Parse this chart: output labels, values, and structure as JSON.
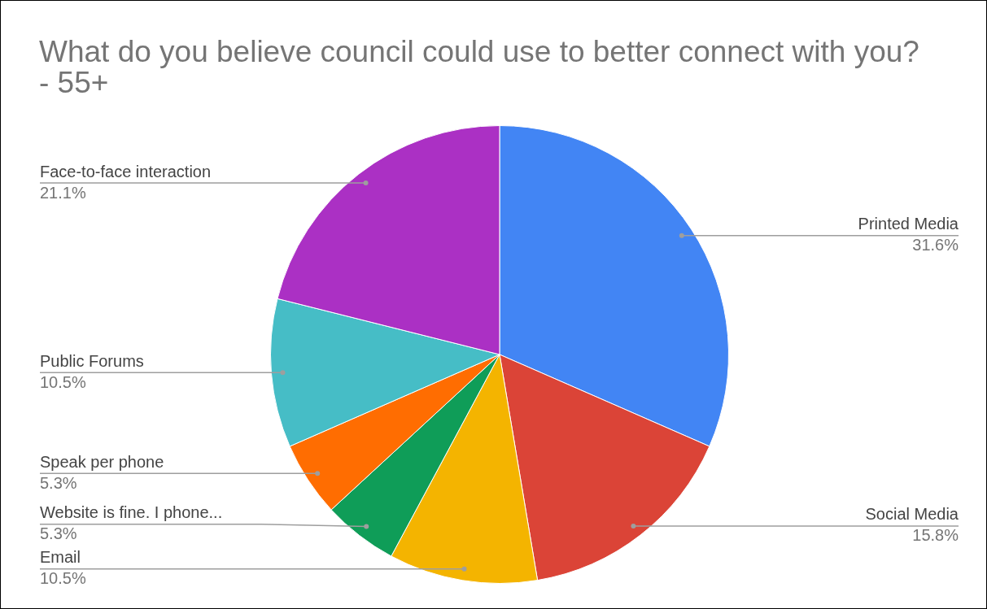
{
  "chart_data": {
    "type": "pie",
    "title": "What do you believe council could use to better connect with you? - 55+",
    "categories": [
      "Printed Media",
      "Social Media",
      "Email",
      "Website is fine. I phone...",
      "Speak per phone",
      "Public Forums",
      "Face-to-face interaction"
    ],
    "values": [
      31.6,
      15.8,
      10.5,
      5.3,
      5.3,
      10.5,
      21.1
    ],
    "colors": [
      "#4285f4",
      "#db4437",
      "#f4b400",
      "#0f9d58",
      "#ff6d01",
      "#46bdc6",
      "#ab30c4"
    ],
    "value_labels": [
      "31.6%",
      "15.8%",
      "10.5%",
      "5.3%",
      "5.3%",
      "10.5%",
      "21.1%"
    ]
  }
}
